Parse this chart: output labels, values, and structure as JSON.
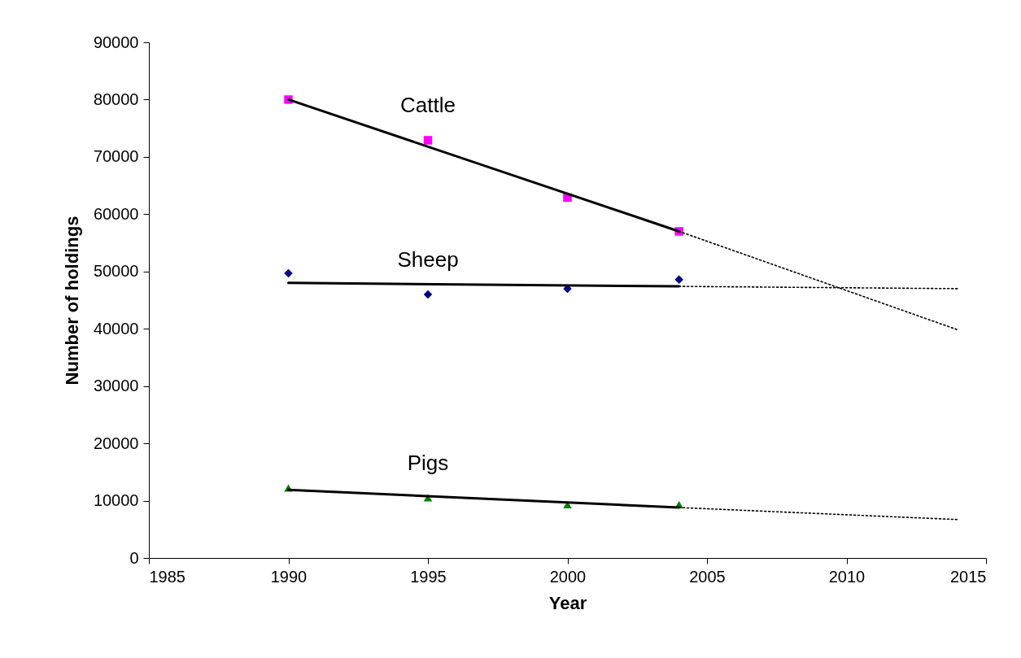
{
  "chart_data": {
    "type": "scatter",
    "xlabel": "Year",
    "ylabel": "Number of holdings",
    "x": [
      1990,
      1995,
      2000,
      2004
    ],
    "series": [
      {
        "name": "Cattle",
        "marker": "square",
        "color": "#ff00ff",
        "values": [
          80000,
          72900,
          62900,
          57000
        ]
      },
      {
        "name": "Sheep",
        "marker": "diamond",
        "color": "#000080",
        "values": [
          49700,
          46000,
          47000,
          48600
        ]
      },
      {
        "name": "Pigs",
        "marker": "triangle",
        "color": "#008000",
        "values": [
          12200,
          10500,
          9300,
          9300
        ]
      },
      {
        "type": "line",
        "line_style": "solid",
        "color": "#000000",
        "x": [
          1990,
          2004
        ],
        "values": [
          80000,
          57000
        ]
      },
      {
        "type": "line",
        "line_style": "dotted",
        "color": "#000000",
        "x": [
          2004,
          2014
        ],
        "values": [
          57000,
          39800
        ]
      },
      {
        "type": "line",
        "line_style": "solid",
        "color": "#000000",
        "x": [
          1990,
          2004
        ],
        "values": [
          48000,
          47400
        ]
      },
      {
        "type": "line",
        "line_style": "dotted",
        "color": "#000000",
        "x": [
          2004,
          2014
        ],
        "values": [
          47400,
          47000
        ]
      },
      {
        "type": "line",
        "line_style": "solid",
        "color": "#000000",
        "x": [
          1990,
          2004
        ],
        "values": [
          11900,
          8800
        ]
      },
      {
        "type": "line",
        "line_style": "dotted",
        "color": "#000000",
        "x": [
          2004,
          2014
        ],
        "values": [
          8800,
          6700
        ]
      }
    ],
    "xlim": [
      1985,
      2015
    ],
    "xticks": [
      1985,
      1990,
      1995,
      2000,
      2005,
      2010,
      2015
    ],
    "ylim": [
      0,
      90000
    ],
    "yticks": [
      0,
      10000,
      20000,
      30000,
      40000,
      50000,
      60000,
      70000,
      80000,
      90000
    ],
    "grid": false,
    "legend": false
  }
}
